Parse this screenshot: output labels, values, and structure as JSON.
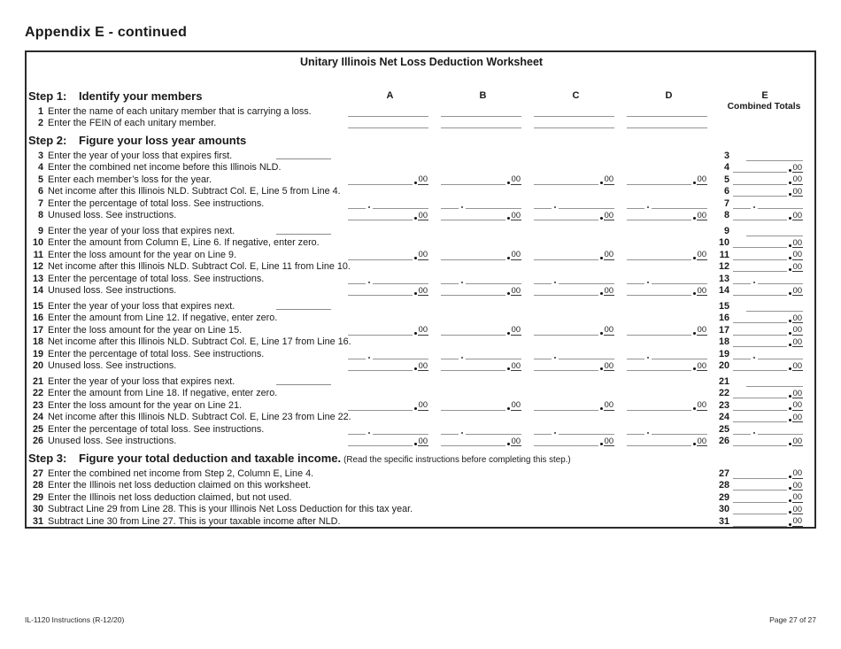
{
  "page": {
    "heading": "Appendix E - continued",
    "footer_left": "IL-1120 Instructions (R-12/20)",
    "footer_right": "Page 27 of 27"
  },
  "worksheet": {
    "title": "Unitary Illinois Net Loss Deduction Worksheet",
    "columns": [
      "A",
      "B",
      "C",
      "D",
      "E"
    ],
    "column_e_subtitle": "Combined Totals",
    "decimal_suffix": "00",
    "sections": [
      {
        "step_label": "Step 1:",
        "step_title": "Identify your members",
        "step_note": "",
        "column_headers": true,
        "rows": [
          {
            "num": "1",
            "label": "Enter the name of each unitary member that is carrying a loss.",
            "abcd": "line",
            "e": "none"
          },
          {
            "num": "2",
            "label": "Enter the FEIN of each unitary member.",
            "abcd": "line",
            "e": "none"
          }
        ]
      },
      {
        "step_label": "Step 2:",
        "step_title": "Figure your loss year amounts",
        "step_note": "",
        "column_headers": false,
        "rows": [
          {
            "num": "3",
            "label": "Enter the year of your loss that expires first.",
            "year": true,
            "abcd": "none",
            "e": "plain"
          },
          {
            "num": "4",
            "label": "Enter the combined net income before this Illinois NLD.",
            "abcd": "none",
            "e": "amount"
          },
          {
            "num": "5",
            "label": "Enter each member’s loss for the year.",
            "abcd": "amount",
            "e": "amount"
          },
          {
            "num": "6",
            "label": "Net income after this Illinois NLD. Subtract Col. E, Line 5 from Line 4.",
            "abcd": "none",
            "e": "amount"
          },
          {
            "num": "7",
            "label": "Enter the percentage of total loss. See instructions.",
            "abcd": "percent",
            "e": "percent"
          },
          {
            "num": "8",
            "label": "Unused loss. See instructions.",
            "abcd": "amount",
            "e": "amount"
          },
          {
            "num": "9",
            "label": "Enter the year of your loss that expires next.",
            "year": true,
            "abcd": "none",
            "e": "plain",
            "gap": true
          },
          {
            "num": "10",
            "label": "Enter the amount from Column E, Line 6. If negative, enter zero.",
            "abcd": "none",
            "e": "amount"
          },
          {
            "num": "11",
            "label": "Enter the loss amount for the year on Line 9.",
            "abcd": "amount",
            "e": "amount"
          },
          {
            "num": "12",
            "label": "Net income after this Illinois NLD. Subtract Col. E, Line 11 from Line 10.",
            "abcd": "none",
            "e": "amount"
          },
          {
            "num": "13",
            "label": "Enter the percentage of total loss. See instructions.",
            "abcd": "percent",
            "e": "percent"
          },
          {
            "num": "14",
            "label": "Unused loss. See instructions.",
            "abcd": "amount",
            "e": "amount"
          },
          {
            "num": "15",
            "label": "Enter the year of your loss that expires next.",
            "year": true,
            "abcd": "none",
            "e": "plain",
            "gap": true
          },
          {
            "num": "16",
            "label": "Enter the amount from Line 12. If negative, enter zero.",
            "abcd": "none",
            "e": "amount"
          },
          {
            "num": "17",
            "label": "Enter the loss amount for the year on Line 15.",
            "abcd": "amount",
            "e": "amount"
          },
          {
            "num": "18",
            "label": "Net income after this Illinois NLD. Subtract Col. E, Line 17 from Line 16.",
            "abcd": "none",
            "e": "amount"
          },
          {
            "num": "19",
            "label": "Enter the percentage of total loss. See instructions.",
            "abcd": "percent",
            "e": "percent"
          },
          {
            "num": "20",
            "label": "Unused loss. See instructions.",
            "abcd": "amount",
            "e": "amount"
          },
          {
            "num": "21",
            "label": "Enter the year of your loss that expires next.",
            "year": true,
            "abcd": "none",
            "e": "plain",
            "gap": true
          },
          {
            "num": "22",
            "label": "Enter the amount from Line 18. If negative, enter zero.",
            "abcd": "none",
            "e": "amount"
          },
          {
            "num": "23",
            "label": "Enter the loss amount for the year on Line 21.",
            "abcd": "amount",
            "e": "amount"
          },
          {
            "num": "24",
            "label": "Net income after this Illinois NLD. Subtract Col. E, Line 23 from Line 22.",
            "abcd": "none",
            "e": "amount"
          },
          {
            "num": "25",
            "label": "Enter the percentage of total loss. See instructions.",
            "abcd": "percent",
            "e": "percent"
          },
          {
            "num": "26",
            "label": "Unused loss. See instructions.",
            "abcd": "amount",
            "e": "amount"
          }
        ]
      },
      {
        "step_label": "Step 3:",
        "step_title": "Figure your total deduction and taxable income.",
        "step_note": "(Read the specific instructions before completing this step.)",
        "column_headers": false,
        "rows": [
          {
            "num": "27",
            "label": "Enter the combined net income from Step 2, Column E, Line 4.",
            "abcd": "none",
            "e": "amount"
          },
          {
            "num": "28",
            "label": "Enter the Illinois net loss deduction claimed on this worksheet.",
            "abcd": "none",
            "e": "amount"
          },
          {
            "num": "29",
            "label": "Enter the Illinois net loss deduction claimed, but not used.",
            "abcd": "none",
            "e": "amount"
          },
          {
            "num": "30",
            "label": "Subtract Line 29 from Line 28. This is your Illinois Net Loss Deduction for this tax year.",
            "abcd": "none",
            "e": "amount"
          },
          {
            "num": "31",
            "label": "Subtract Line 30 from Line 27. This is your taxable income after NLD.",
            "abcd": "none",
            "e": "amount"
          }
        ]
      }
    ]
  }
}
